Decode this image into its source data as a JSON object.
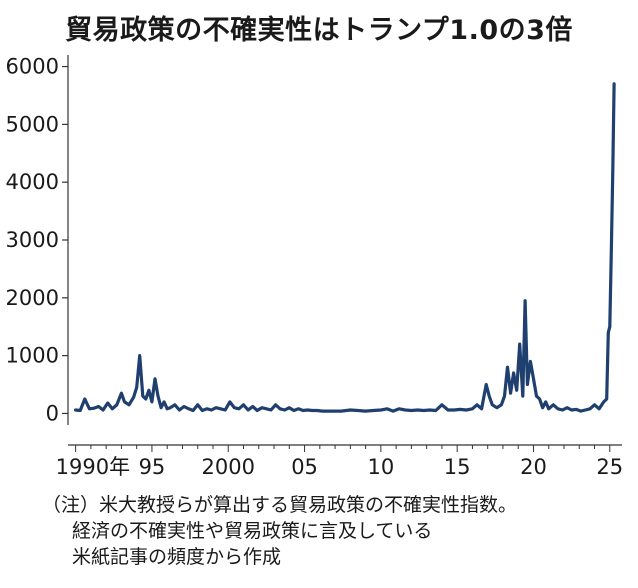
{
  "chart_data": {
    "type": "line",
    "title": "貿易政策の不確実性はトランプ1.0の3倍",
    "xlabel": "",
    "ylabel": "",
    "ylim": [
      -200,
      6200
    ],
    "xlim": [
      1989.5,
      2025.8
    ],
    "yticks": [
      {
        "value": 6000,
        "label": "6000"
      },
      {
        "value": 5000,
        "label": "5000"
      },
      {
        "value": 4000,
        "label": "4000"
      },
      {
        "value": 3000,
        "label": "3000"
      },
      {
        "value": 2000,
        "label": "2000"
      },
      {
        "value": 1000,
        "label": "1000"
      },
      {
        "value": 0,
        "label": "0"
      }
    ],
    "xticks": [
      {
        "value": 1990,
        "label": "1990年"
      },
      {
        "value": 1995,
        "label": "95"
      },
      {
        "value": 2000,
        "label": "2000"
      },
      {
        "value": 2005,
        "label": "05"
      },
      {
        "value": 2010,
        "label": "10"
      },
      {
        "value": 2015,
        "label": "15"
      },
      {
        "value": 2020,
        "label": "20"
      },
      {
        "value": 2025,
        "label": "25"
      }
    ],
    "grid": false,
    "line_color": "#1f3f6e",
    "series": [
      {
        "x": [
          1990.0,
          1990.3,
          1990.6,
          1990.9,
          1991.2,
          1991.5,
          1991.8,
          1992.1,
          1992.4,
          1992.7,
          1993.0,
          1993.2,
          1993.5,
          1993.8,
          1994.0,
          1994.2,
          1994.4,
          1994.6,
          1994.8,
          1995.0,
          1995.2,
          1995.4,
          1995.6,
          1995.8,
          1996.0,
          1996.2,
          1996.5,
          1996.8,
          1997.1,
          1997.4,
          1997.7,
          1998.0,
          1998.3,
          1998.6,
          1998.9,
          1999.2,
          1999.5,
          1999.8,
          2000.1,
          2000.4,
          2000.7,
          2001.0,
          2001.3,
          2001.6,
          2001.9,
          2002.2,
          2002.5,
          2002.8,
          2003.1,
          2003.4,
          2003.7,
          2004.0,
          2004.3,
          2004.6,
          2004.9,
          2005.2,
          2005.5,
          2005.8,
          2006.2,
          2006.8,
          2007.4,
          2008.0,
          2008.5,
          2009.0,
          2009.5,
          2010.0,
          2010.4,
          2010.8,
          2011.2,
          2011.6,
          2012.0,
          2012.4,
          2012.8,
          2013.2,
          2013.6,
          2014.0,
          2014.4,
          2014.8,
          2015.2,
          2015.6,
          2016.0,
          2016.3,
          2016.6,
          2016.9,
          2017.1,
          2017.3,
          2017.6,
          2017.9,
          2018.1,
          2018.3,
          2018.5,
          2018.7,
          2018.9,
          2019.1,
          2019.3,
          2019.45,
          2019.6,
          2019.8,
          2020.0,
          2020.2,
          2020.4,
          2020.6,
          2020.8,
          2021.0,
          2021.3,
          2021.6,
          2021.9,
          2022.2,
          2022.5,
          2022.8,
          2023.1,
          2023.4,
          2023.7,
          2024.0,
          2024.3,
          2024.6,
          2024.8,
          2024.9,
          2025.0,
          2025.1,
          2025.2,
          2025.28
        ],
        "y": [
          60,
          50,
          250,
          80,
          90,
          120,
          60,
          180,
          80,
          150,
          350,
          200,
          150,
          280,
          450,
          1000,
          300,
          250,
          400,
          200,
          600,
          300,
          100,
          200,
          80,
          100,
          150,
          60,
          120,
          80,
          50,
          150,
          50,
          80,
          60,
          100,
          80,
          60,
          200,
          100,
          80,
          150,
          60,
          120,
          50,
          100,
          80,
          60,
          150,
          80,
          60,
          100,
          50,
          80,
          50,
          60,
          50,
          50,
          40,
          40,
          40,
          60,
          50,
          40,
          50,
          60,
          80,
          40,
          80,
          60,
          50,
          60,
          50,
          60,
          50,
          150,
          60,
          60,
          70,
          60,
          80,
          150,
          80,
          500,
          300,
          150,
          100,
          150,
          300,
          800,
          350,
          700,
          400,
          1200,
          300,
          1950,
          500,
          900,
          600,
          300,
          250,
          100,
          200,
          80,
          150,
          80,
          60,
          100,
          60,
          70,
          40,
          60,
          80,
          150,
          80,
          200,
          250,
          1400,
          1500,
          2800,
          4200,
          5700
        ]
      }
    ]
  },
  "note": {
    "line1": "（注）米大教授らが算出する貿易政策の不確実性指数。",
    "line2": "経済の不確実性や貿易政策に言及している",
    "line3": "米紙記事の頻度から作成"
  }
}
